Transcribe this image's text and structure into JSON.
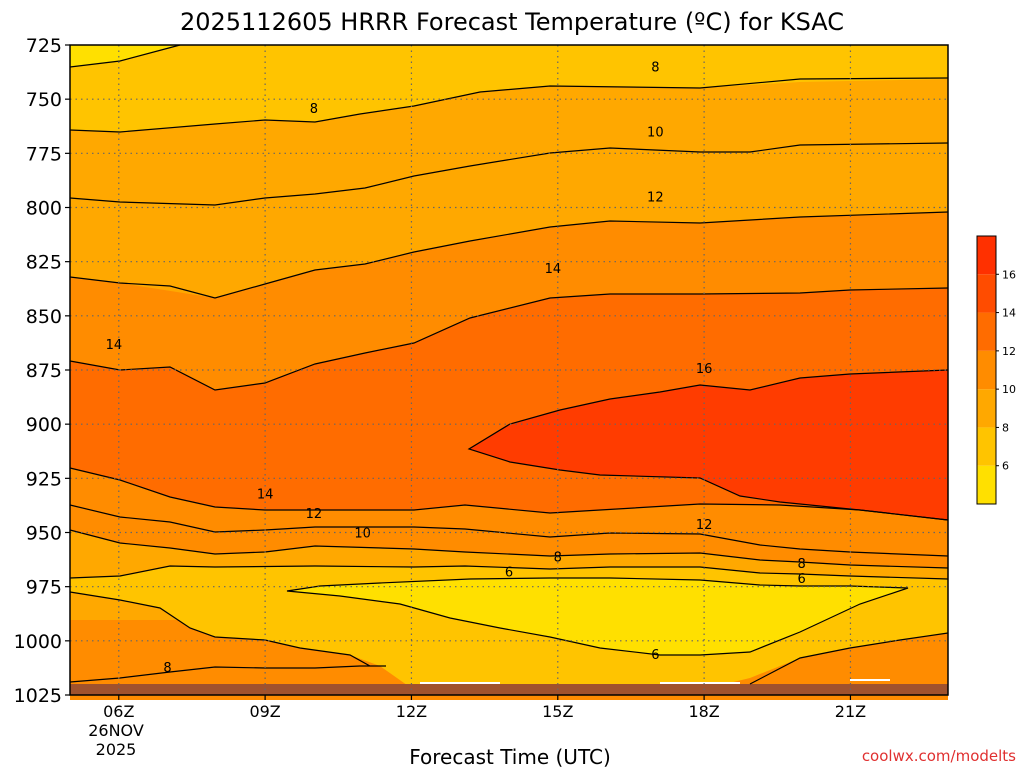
{
  "title": "2025112605 HRRR Forecast Temperature (ºC) for KSAC",
  "xlabel": "Forecast Time (UTC)",
  "watermark": "coolwx.com/modelts",
  "date_label": [
    "26NOV",
    "2025"
  ],
  "colorbar": {
    "levels": [
      6,
      8,
      10,
      12,
      14,
      16
    ],
    "colors": [
      "#ffe000",
      "#ffc400",
      "#ffa800",
      "#ff8c00",
      "#ff6c00",
      "#ff4c00",
      "#ff3000"
    ]
  },
  "ground_color": "#a0522d",
  "chart_data": {
    "type": "heatmap",
    "title": "2025112605 HRRR Forecast Temperature (ºC) for KSAC",
    "xlabel": "Forecast Time (UTC)",
    "ylabel": "",
    "x_ticks": [
      "06Z",
      "09Z",
      "12Z",
      "15Z",
      "18Z",
      "21Z"
    ],
    "y_ticks": [
      725,
      750,
      775,
      800,
      825,
      850,
      875,
      900,
      925,
      950,
      975,
      1000,
      1025
    ],
    "y_range": [
      725,
      1025
    ],
    "x_range_hours": [
      5,
      23
    ],
    "grid": true,
    "contour_levels": [
      6,
      8,
      10,
      12,
      14,
      16
    ],
    "contour_labels": [
      {
        "text": "8",
        "hour": 17.0,
        "p": 735
      },
      {
        "text": "8",
        "hour": 10.0,
        "p": 754
      },
      {
        "text": "10",
        "hour": 17.0,
        "p": 765
      },
      {
        "text": "12",
        "hour": 17.0,
        "p": 795
      },
      {
        "text": "14",
        "hour": 14.9,
        "p": 828
      },
      {
        "text": "14",
        "hour": 5.9,
        "p": 863
      },
      {
        "text": "16",
        "hour": 18.0,
        "p": 874
      },
      {
        "text": "14",
        "hour": 9.0,
        "p": 932
      },
      {
        "text": "12",
        "hour": 10.0,
        "p": 941
      },
      {
        "text": "10",
        "hour": 11.0,
        "p": 950
      },
      {
        "text": "12",
        "hour": 18.0,
        "p": 946
      },
      {
        "text": "8",
        "hour": 15.0,
        "p": 961
      },
      {
        "text": "6",
        "hour": 14.0,
        "p": 968
      },
      {
        "text": "8",
        "hour": 20.0,
        "p": 964
      },
      {
        "text": "6",
        "hour": 20.0,
        "p": 971
      },
      {
        "text": "6",
        "hour": 17.0,
        "p": 1006
      },
      {
        "text": "8",
        "hour": 7.0,
        "p": 1012
      }
    ]
  }
}
